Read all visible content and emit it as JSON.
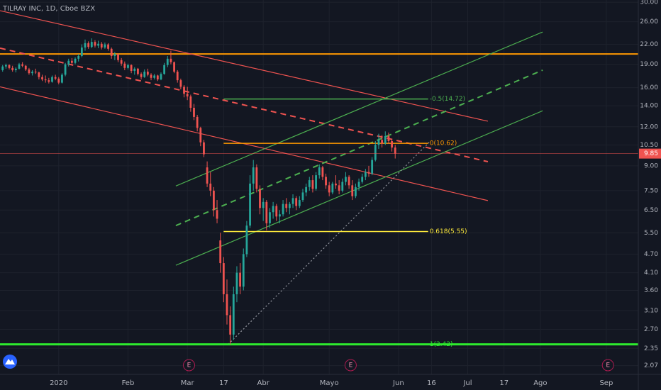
{
  "chart_data": {
    "type": "candlestick",
    "title": "TILRAY INC, 1D, Cboe BZX",
    "log_scale": true,
    "grid": true,
    "up_color": "#26a69a",
    "down_color": "#ef5350",
    "xlim": [
      -17.8,
      175.7
    ],
    "ylim": [
      1.94,
      30.5
    ],
    "xticks": [
      {
        "value": 0,
        "label": "2020"
      },
      {
        "value": 21,
        "label": "Feb"
      },
      {
        "value": 39,
        "label": "Mar"
      },
      {
        "value": 50,
        "label": "17"
      },
      {
        "value": 62,
        "label": "Abr"
      },
      {
        "value": 82,
        "label": "Mayo"
      },
      {
        "value": 103,
        "label": "Jun"
      },
      {
        "value": 113,
        "label": "16"
      },
      {
        "value": 124,
        "label": "Jul"
      },
      {
        "value": 135,
        "label": "17"
      },
      {
        "value": 146,
        "label": "Ago"
      },
      {
        "value": 166,
        "label": "Sep"
      }
    ],
    "yticks": [
      {
        "value": 30,
        "label": "30.00"
      },
      {
        "value": 26,
        "label": "26.00"
      },
      {
        "value": 22,
        "label": "22.00"
      },
      {
        "value": 19,
        "label": "19.00"
      },
      {
        "value": 16,
        "label": "16.00"
      },
      {
        "value": 14,
        "label": "14.00"
      },
      {
        "value": 12,
        "label": "12.00"
      },
      {
        "value": 10.5,
        "label": "10.50"
      },
      {
        "value": 9,
        "label": "9.00"
      },
      {
        "value": 7.5,
        "label": "7.50"
      },
      {
        "value": 6.5,
        "label": "6.50"
      },
      {
        "value": 5.5,
        "label": "5.50"
      },
      {
        "value": 4.7,
        "label": "4.70"
      },
      {
        "value": 4.1,
        "label": "4.10"
      },
      {
        "value": 3.6,
        "label": "3.60"
      },
      {
        "value": 3.1,
        "label": "3.10"
      },
      {
        "value": 2.7,
        "label": "2.70"
      },
      {
        "value": 2.35,
        "label": "2.35"
      },
      {
        "value": 2.07,
        "label": "2.07"
      }
    ],
    "last_price": 9.85,
    "last_price_color": "#ef5350",
    "earnings": [
      {
        "x": 39.5,
        "label": "E"
      },
      {
        "x": 88.5,
        "label": "E"
      },
      {
        "x": 166.5,
        "label": "E"
      }
    ],
    "candles": [
      [
        -17,
        18.2,
        18.9,
        18.0,
        18.7
      ],
      [
        -16,
        18.7,
        19.1,
        18.4,
        18.9
      ],
      [
        -15,
        18.9,
        19.0,
        18.3,
        18.5
      ],
      [
        -14,
        18.5,
        18.8,
        18.0,
        18.2
      ],
      [
        -13,
        18.2,
        18.6,
        17.9,
        18.4
      ],
      [
        -12,
        18.4,
        19.2,
        18.3,
        19.0
      ],
      [
        -11,
        19.0,
        19.3,
        18.6,
        18.8
      ],
      [
        -10,
        18.8,
        18.9,
        18.1,
        18.3
      ],
      [
        -9,
        18.3,
        18.5,
        17.6,
        17.8
      ],
      [
        -8,
        17.8,
        18.2,
        17.5,
        18.0
      ],
      [
        -7,
        18.0,
        18.4,
        17.7,
        17.9
      ],
      [
        -6,
        17.9,
        18.0,
        17.0,
        17.3
      ],
      [
        -5,
        17.3,
        17.6,
        16.8,
        17.0
      ],
      [
        -4,
        17.0,
        17.5,
        16.6,
        16.9
      ],
      [
        -3,
        16.9,
        17.2,
        16.5,
        16.7
      ],
      [
        -2,
        16.7,
        17.5,
        16.6,
        17.3
      ],
      [
        -1,
        17.3,
        17.6,
        16.9,
        17.1
      ],
      [
        0,
        17.1,
        17.3,
        16.4,
        16.6
      ],
      [
        1,
        16.6,
        17.8,
        16.5,
        17.6
      ],
      [
        2,
        17.6,
        19.2,
        17.4,
        19.0
      ],
      [
        3,
        19.0,
        19.8,
        18.7,
        19.5
      ],
      [
        4,
        19.5,
        19.9,
        19.0,
        19.2
      ],
      [
        5,
        19.2,
        20.0,
        19.0,
        19.8
      ],
      [
        6,
        19.8,
        20.5,
        19.4,
        20.2
      ],
      [
        7,
        20.2,
        22.0,
        20.0,
        21.5
      ],
      [
        8,
        21.5,
        22.8,
        21.0,
        22.2
      ],
      [
        9,
        22.2,
        22.5,
        21.3,
        21.6
      ],
      [
        10,
        21.6,
        23.0,
        21.4,
        22.4
      ],
      [
        11,
        22.4,
        22.7,
        21.5,
        21.8
      ],
      [
        12,
        21.8,
        22.6,
        21.4,
        22.1
      ],
      [
        13,
        22.1,
        22.4,
        21.2,
        21.5
      ],
      [
        14,
        21.5,
        22.3,
        21.3,
        22.0
      ],
      [
        15,
        22.0,
        22.2,
        21.0,
        21.3
      ],
      [
        16,
        21.3,
        21.5,
        19.8,
        20.2
      ],
      [
        17,
        20.2,
        20.8,
        19.6,
        20.5
      ],
      [
        18,
        20.5,
        20.6,
        19.3,
        19.6
      ],
      [
        19,
        19.6,
        19.9,
        18.8,
        19.1
      ],
      [
        20,
        19.1,
        19.4,
        18.2,
        18.5
      ],
      [
        21,
        18.5,
        19.1,
        18.3,
        18.9
      ],
      [
        22,
        18.9,
        19.0,
        17.8,
        18.1
      ],
      [
        23,
        18.1,
        18.6,
        17.6,
        18.4
      ],
      [
        24,
        18.4,
        18.5,
        17.5,
        17.7
      ],
      [
        25,
        17.7,
        17.9,
        17.0,
        17.3
      ],
      [
        26,
        17.3,
        18.3,
        17.2,
        18.0
      ],
      [
        27,
        18.0,
        18.4,
        17.4,
        17.6
      ],
      [
        28,
        17.6,
        17.8,
        16.9,
        17.2
      ],
      [
        29,
        17.2,
        17.7,
        17.0,
        17.5
      ],
      [
        30,
        17.5,
        17.6,
        16.8,
        17.0
      ],
      [
        31,
        17.0,
        17.9,
        16.9,
        17.7
      ],
      [
        32,
        17.7,
        19.2,
        17.6,
        18.9
      ],
      [
        33,
        18.9,
        20.2,
        18.6,
        19.8
      ],
      [
        34,
        19.8,
        21.0,
        19.0,
        19.3
      ],
      [
        35,
        19.3,
        19.4,
        17.8,
        18.0
      ],
      [
        36,
        18.0,
        18.2,
        16.6,
        16.9
      ],
      [
        37,
        16.9,
        17.1,
        15.8,
        16.1
      ],
      [
        38,
        16.1,
        16.3,
        14.9,
        15.3
      ],
      [
        39,
        15.3,
        16.1,
        14.6,
        15.0
      ],
      [
        40,
        15.0,
        15.2,
        13.4,
        13.8
      ],
      [
        41,
        13.8,
        14.2,
        12.6,
        12.9
      ],
      [
        42,
        12.9,
        13.1,
        11.6,
        11.9
      ],
      [
        43,
        11.9,
        12.0,
        10.4,
        10.7
      ],
      [
        44,
        10.7,
        10.9,
        9.6,
        9.8
      ],
      [
        45,
        8.9,
        9.3,
        7.7,
        7.9
      ],
      [
        46,
        7.9,
        8.6,
        7.2,
        7.5
      ],
      [
        47,
        7.5,
        7.7,
        6.2,
        6.5
      ],
      [
        48,
        6.5,
        7.0,
        5.9,
        6.1
      ],
      [
        49,
        5.2,
        5.5,
        4.1,
        4.4
      ],
      [
        50,
        4.4,
        4.6,
        3.3,
        3.5
      ],
      [
        51,
        3.5,
        3.9,
        2.8,
        3.0
      ],
      [
        52,
        3.0,
        3.2,
        2.42,
        2.6
      ],
      [
        53,
        2.6,
        3.7,
        2.5,
        3.5
      ],
      [
        54,
        3.5,
        4.3,
        3.3,
        4.1
      ],
      [
        55,
        4.1,
        4.4,
        3.5,
        3.7
      ],
      [
        56,
        3.7,
        4.9,
        3.6,
        4.7
      ],
      [
        57,
        4.7,
        6.0,
        4.6,
        5.8
      ],
      [
        58,
        5.8,
        8.4,
        5.7,
        7.9
      ],
      [
        59,
        7.9,
        9.4,
        7.5,
        8.9
      ],
      [
        60,
        8.9,
        9.1,
        7.4,
        7.6
      ],
      [
        61,
        7.6,
        7.8,
        6.3,
        6.6
      ],
      [
        62,
        6.6,
        7.1,
        6.0,
        6.9
      ],
      [
        63,
        6.9,
        7.0,
        5.6,
        5.9
      ],
      [
        64,
        5.9,
        6.6,
        5.7,
        6.4
      ],
      [
        65,
        6.4,
        6.9,
        6.1,
        6.7
      ],
      [
        66,
        6.7,
        6.8,
        6.0,
        6.2
      ],
      [
        67,
        6.2,
        6.5,
        5.9,
        6.3
      ],
      [
        68,
        6.3,
        7.0,
        6.2,
        6.8
      ],
      [
        69,
        6.8,
        7.1,
        6.4,
        6.6
      ],
      [
        70,
        6.6,
        6.9,
        6.3,
        6.8
      ],
      [
        71,
        6.8,
        7.3,
        6.6,
        7.1
      ],
      [
        72,
        7.1,
        7.2,
        6.5,
        6.7
      ],
      [
        73,
        6.7,
        7.2,
        6.6,
        7.0
      ],
      [
        74,
        7.0,
        7.6,
        6.9,
        7.4
      ],
      [
        75,
        7.4,
        7.9,
        7.2,
        7.7
      ],
      [
        76,
        7.7,
        8.3,
        7.5,
        8.1
      ],
      [
        77,
        8.1,
        8.4,
        7.4,
        7.6
      ],
      [
        78,
        7.6,
        8.6,
        7.5,
        8.4
      ],
      [
        79,
        8.4,
        9.1,
        8.2,
        8.9
      ],
      [
        80,
        8.9,
        9.0,
        8.1,
        8.3
      ],
      [
        81,
        8.3,
        8.5,
        7.6,
        7.8
      ],
      [
        82,
        7.8,
        8.0,
        7.2,
        7.4
      ],
      [
        83,
        7.4,
        8.0,
        7.3,
        7.9
      ],
      [
        84,
        7.9,
        8.4,
        7.6,
        7.8
      ],
      [
        85,
        7.8,
        8.1,
        7.3,
        7.5
      ],
      [
        86,
        7.5,
        8.2,
        7.4,
        8.0
      ],
      [
        87,
        8.0,
        8.6,
        7.8,
        8.3
      ],
      [
        88,
        8.3,
        8.4,
        7.6,
        7.8
      ],
      [
        89,
        7.8,
        8.1,
        7.0,
        7.2
      ],
      [
        90,
        7.2,
        7.9,
        7.1,
        7.7
      ],
      [
        91,
        7.7,
        8.2,
        7.5,
        8.0
      ],
      [
        92,
        8.0,
        8.5,
        7.9,
        8.3
      ],
      [
        93,
        8.3,
        8.8,
        8.1,
        8.6
      ],
      [
        94,
        8.6,
        9.0,
        8.3,
        8.5
      ],
      [
        95,
        8.5,
        9.6,
        8.4,
        9.4
      ],
      [
        96,
        9.4,
        10.8,
        9.3,
        10.5
      ],
      [
        97,
        10.5,
        11.4,
        10.2,
        10.9
      ],
      [
        98,
        10.9,
        11.3,
        10.3,
        10.6
      ],
      [
        99,
        10.6,
        11.6,
        10.5,
        11.2
      ],
      [
        100,
        11.2,
        11.5,
        10.6,
        10.8
      ],
      [
        101,
        10.8,
        11.0,
        10.0,
        10.3
      ],
      [
        102,
        10.3,
        10.5,
        9.5,
        9.85
      ]
    ],
    "trendlines": [
      {
        "color": "#ef5350",
        "dash": false,
        "points": [
          [
            -17.8,
            28.2
          ],
          [
            130.1,
            12.5
          ]
        ]
      },
      {
        "color": "#ef5350",
        "dash": true,
        "points": [
          [
            -17.8,
            21.4
          ],
          [
            130.1,
            9.28
          ]
        ]
      },
      {
        "color": "#ef5350",
        "dash": false,
        "points": [
          [
            -17.8,
            16.1
          ],
          [
            130.1,
            6.97
          ]
        ]
      },
      {
        "color": "#4caf50",
        "dash": false,
        "points": [
          [
            35.5,
            7.76
          ],
          [
            146.7,
            24.1
          ]
        ]
      },
      {
        "color": "#4caf50",
        "dash": true,
        "points": [
          [
            35.5,
            5.8
          ],
          [
            146.7,
            18.2
          ]
        ]
      },
      {
        "color": "#4caf50",
        "dash": false,
        "points": [
          [
            35.5,
            4.33
          ],
          [
            146.7,
            13.5
          ]
        ]
      },
      {
        "color": "#9598a1",
        "dash": "dot",
        "points": [
          [
            51.4,
            2.42
          ],
          [
            112.3,
            10.7
          ]
        ]
      }
    ],
    "hlines": [
      {
        "value": 20.5,
        "color": "#ff9800"
      }
    ],
    "fib_levels": [
      {
        "label": "-0.5(14.72)",
        "value": 14.72,
        "color": "#4caf50",
        "extend": false
      },
      {
        "label": "0(10.62)",
        "value": 10.62,
        "color": "#ff9800",
        "extend": false
      },
      {
        "label": "0.618(5.55)",
        "value": 5.55,
        "color": "#ffeb3b",
        "extend": false
      },
      {
        "label": "1(2.42)",
        "value": 2.42,
        "color": "#2eea2e",
        "extend": true
      }
    ],
    "fib_x": [
      50,
      112
    ]
  }
}
